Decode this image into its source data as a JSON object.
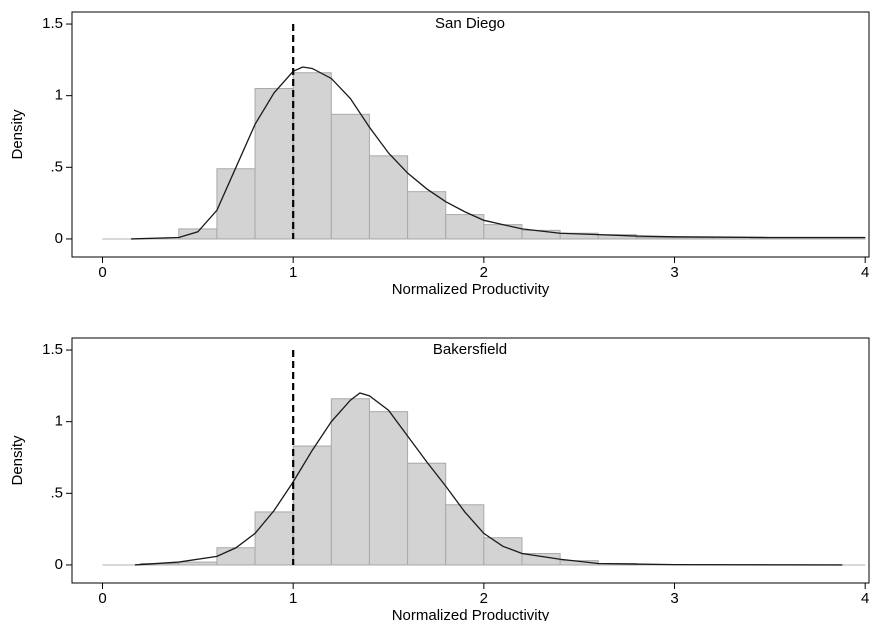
{
  "chart_data": [
    {
      "type": "histogram",
      "title": "San Diego",
      "xlabel": "Normalized Productivity",
      "ylabel": "Density",
      "bins": [
        0,
        0.2,
        0.4,
        0.6,
        0.8,
        1.0,
        1.2,
        1.4,
        1.6,
        1.8,
        2.0,
        2.2,
        2.4,
        2.6,
        2.8,
        3.0,
        3.2,
        3.4,
        3.6,
        3.8,
        4.0
      ],
      "values": [
        0,
        0,
        0.07,
        0.49,
        1.05,
        1.16,
        0.87,
        0.58,
        0.33,
        0.17,
        0.1,
        0.06,
        0.04,
        0.03,
        0.01,
        0.01,
        0.01,
        0.005,
        0.005,
        0.005
      ],
      "color": "#d3d3d3",
      "density": {
        "color": "#1a1a1a",
        "x": [
          0.15,
          0.4,
          0.5,
          0.6,
          0.7,
          0.8,
          0.9,
          1.0,
          1.05,
          1.1,
          1.2,
          1.3,
          1.4,
          1.5,
          1.6,
          1.7,
          1.8,
          1.9,
          2.0,
          2.2,
          2.4,
          2.6,
          2.8,
          3.0,
          3.5,
          4.0
        ],
        "y": [
          0,
          0.01,
          0.05,
          0.2,
          0.5,
          0.8,
          1.02,
          1.17,
          1.2,
          1.19,
          1.12,
          0.98,
          0.78,
          0.6,
          0.46,
          0.35,
          0.26,
          0.19,
          0.13,
          0.07,
          0.04,
          0.03,
          0.02,
          0.015,
          0.01,
          0.01
        ]
      },
      "refline": 1,
      "xlim": [
        -0.16,
        4.02
      ],
      "ylim": [
        -0.126,
        1.584
      ],
      "xticks": [
        0,
        1,
        2,
        3,
        4
      ],
      "yticks": [
        0,
        {
          "value": 0.5,
          "label": ".5"
        },
        1,
        1.5
      ]
    },
    {
      "type": "histogram",
      "title": "Bakersfield",
      "xlabel": "Normalized Productivity",
      "ylabel": "Density",
      "bins": [
        0,
        0.2,
        0.4,
        0.6,
        0.8,
        1.0,
        1.2,
        1.4,
        1.6,
        1.8,
        2.0,
        2.2,
        2.4,
        2.6,
        2.8,
        3.0,
        3.2,
        3.4,
        3.6,
        3.8,
        4.0
      ],
      "values": [
        0,
        0.01,
        0.02,
        0.12,
        0.37,
        0.83,
        1.16,
        1.07,
        0.71,
        0.42,
        0.19,
        0.08,
        0.03,
        0.01,
        0,
        0,
        0,
        0,
        0,
        0
      ],
      "color": "#d3d3d3",
      "density": {
        "color": "#1a1a1a",
        "x": [
          0.17,
          0.4,
          0.6,
          0.7,
          0.8,
          0.9,
          1.0,
          1.1,
          1.2,
          1.3,
          1.35,
          1.4,
          1.5,
          1.6,
          1.7,
          1.8,
          1.9,
          2.0,
          2.1,
          2.2,
          2.4,
          2.6,
          3.0,
          3.88
        ],
        "y": [
          0,
          0.02,
          0.06,
          0.12,
          0.22,
          0.38,
          0.58,
          0.8,
          1.0,
          1.15,
          1.2,
          1.18,
          1.08,
          0.9,
          0.72,
          0.55,
          0.37,
          0.22,
          0.13,
          0.08,
          0.04,
          0.01,
          0.002,
          0
        ]
      },
      "refline": 1,
      "xlim": [
        -0.16,
        4.02
      ],
      "ylim": [
        -0.126,
        1.584
      ],
      "xticks": [
        0,
        1,
        2,
        3,
        4
      ],
      "yticks": [
        0,
        {
          "value": 0.5,
          "label": ".5"
        },
        1,
        1.5
      ]
    }
  ]
}
